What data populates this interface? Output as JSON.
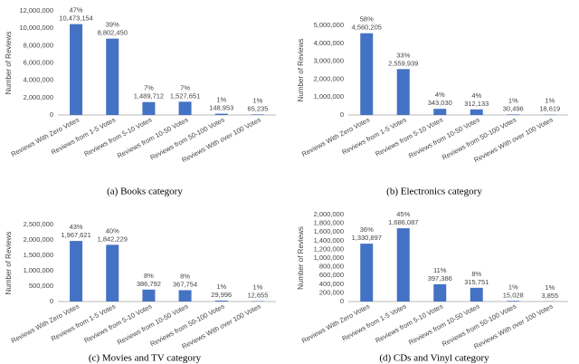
{
  "chart_data": [
    {
      "type": "bar",
      "caption": "(a) Books category",
      "ylabel": "Number of Reviews",
      "color": "#4472c4",
      "categories": [
        "Reviews With Zero Votes",
        "Reviews from 1-5 Votes",
        "Reviews from 5-10 Votes",
        "Reviews from 10-50 Votes",
        "Reviews from 50-100 Votes",
        "Reviews With over 100 Votes"
      ],
      "values": [
        10473154,
        8802450,
        1489712,
        1527651,
        148953,
        65235
      ],
      "value_labels": [
        "10,473,154",
        "8,802,450",
        "1,489,712",
        "1,527,651",
        "148,953",
        "65,235"
      ],
      "percent_labels": [
        "47%",
        "39%",
        "7%",
        "7%",
        "1%",
        "1%"
      ],
      "ylim": [
        0,
        12000000
      ],
      "yticks": [
        0,
        {
          "value": 2000000,
          "label": "2,000,000"
        },
        {
          "value": 4000000,
          "label": "4,000,000"
        },
        {
          "value": 6000000,
          "label": "6,000,000"
        },
        {
          "value": 8000000,
          "label": "8,000,000"
        },
        {
          "value": 10000000,
          "label": "10,000,000"
        },
        {
          "value": 12000000,
          "label": "12,000,000"
        }
      ]
    },
    {
      "type": "bar",
      "caption": "(b) Electronics category",
      "ylabel": "Number of Reviews",
      "color": "#4472c4",
      "categories": [
        "Reviews With Zero Votes",
        "Reviews from 1-5 Votes",
        "Reviews from 5-10 Votes",
        "Reviews from 10-50 Votes",
        "Reviews from 50-100 Votes",
        "Reviews With over 100 Votes"
      ],
      "values": [
        4560205,
        2559939,
        343030,
        312133,
        30496,
        18619
      ],
      "value_labels": [
        "4,560,205",
        "2,559,939",
        "343,030",
        "312,133",
        "30,496",
        "18,619"
      ],
      "percent_labels": [
        "58%",
        "33%",
        "4%",
        "4%",
        "1%",
        "1%"
      ],
      "ylim": [
        0,
        5000000
      ],
      "yticks": [
        0,
        {
          "value": 1000000,
          "label": "1,000,000"
        },
        {
          "value": 2000000,
          "label": "2,000,000"
        },
        {
          "value": 3000000,
          "label": "3,000,000"
        },
        {
          "value": 4000000,
          "label": "4,000,000"
        },
        {
          "value": 5000000,
          "label": "5,000,000"
        }
      ]
    },
    {
      "type": "bar",
      "caption": "(c) Movies and TV category",
      "ylabel": "Number of Reviews",
      "color": "#4472c4",
      "categories": [
        "Reviews With Zero Votes",
        "Reviews from 1-5 Votes",
        "Reviews from 5-10 Votes",
        "Reviews from 10-50 Votes",
        "Reviews from 50-100 Votes",
        "Reviews With over 100 Votes"
      ],
      "values": [
        1967621,
        1842229,
        386792,
        367754,
        29996,
        12655
      ],
      "value_labels": [
        "1,967,621",
        "1,842,229",
        "386,792",
        "367,754",
        "29,996",
        "12,655"
      ],
      "percent_labels": [
        "43%",
        "40%",
        "8%",
        "8%",
        "1%",
        "1%"
      ],
      "ylim": [
        0,
        2500000
      ],
      "yticks": [
        0,
        {
          "value": 500000,
          "label": "500,000"
        },
        {
          "value": 1000000,
          "label": "1,000,000"
        },
        {
          "value": 1500000,
          "label": "1,500,000"
        },
        {
          "value": 2000000,
          "label": "2,000,000"
        },
        {
          "value": 2500000,
          "label": "2,500,000"
        }
      ]
    },
    {
      "type": "bar",
      "caption": "(d) CDs and Vinyl category",
      "ylabel": "Number of Reviews",
      "color": "#4472c4",
      "categories": [
        "Reviews With Zero Votes",
        "Reviews from 1-5 Votes",
        "Reviews from 5-10 Votes",
        "Reviews from 10-50 Votes",
        "Reviews from 50-100 Votes",
        "Reviews With over 100 Votes"
      ],
      "values": [
        1330897,
        1686087,
        397386,
        315751,
        15028,
        3855
      ],
      "value_labels": [
        "1,330,897",
        "1,686,087",
        "397,386",
        "315,751",
        "15,028",
        "3,855"
      ],
      "percent_labels": [
        "36%",
        "45%",
        "11%",
        "8%",
        "1%",
        "1%"
      ],
      "ylim": [
        0,
        2000000
      ],
      "yticks": [
        0,
        {
          "value": 200000,
          "label": "200,000"
        },
        {
          "value": 400000,
          "label": "400,000"
        },
        {
          "value": 600000,
          "label": "600,000"
        },
        {
          "value": 800000,
          "label": "800,000"
        },
        {
          "value": 1000000,
          "label": "1,000,000"
        },
        {
          "value": 1200000,
          "label": "1,200,000"
        },
        {
          "value": 1400000,
          "label": "1,400,000"
        },
        {
          "value": 1600000,
          "label": "1,600,000"
        },
        {
          "value": 1800000,
          "label": "1,800,000"
        },
        {
          "value": 2000000,
          "label": "2,000,000"
        }
      ]
    }
  ]
}
